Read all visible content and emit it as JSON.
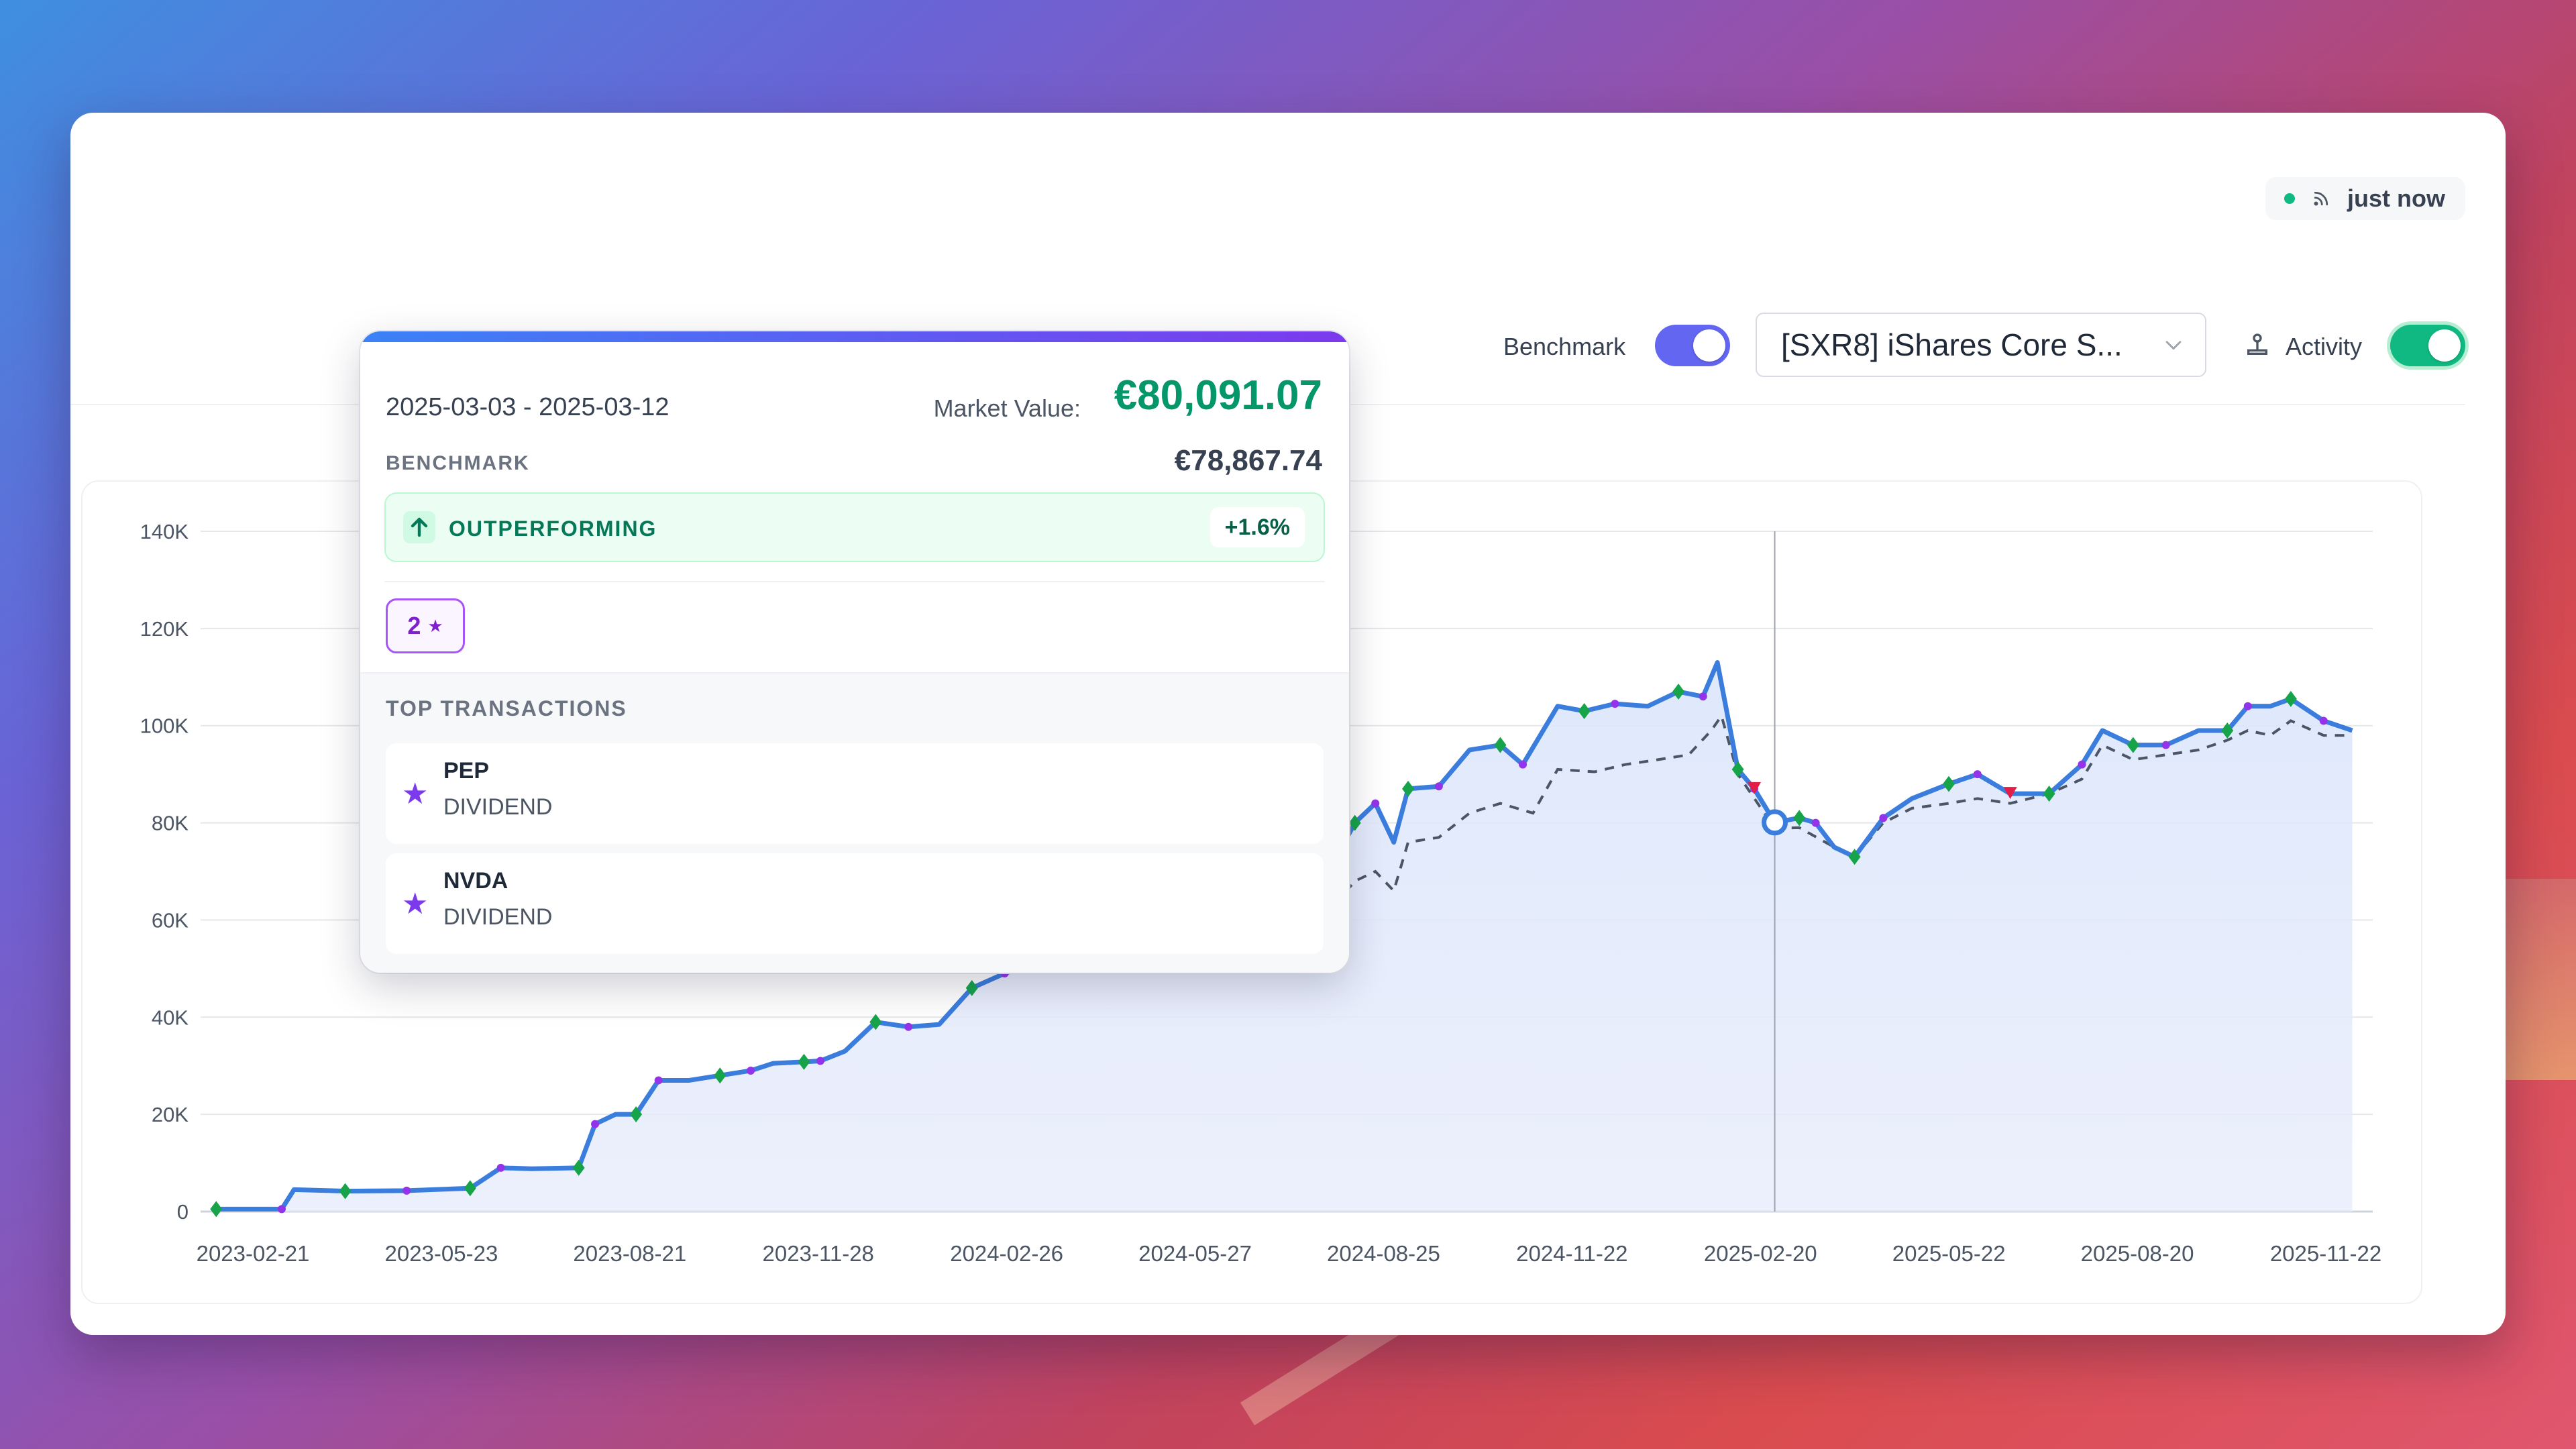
{
  "status": {
    "label": "just now",
    "icon": "rss-icon",
    "color": "#10b981"
  },
  "toolbar": {
    "benchmark_label": "Benchmark",
    "benchmark_enabled": true,
    "benchmark_select_value": "[SXR8] iShares Core S...",
    "activity_label": "Activity",
    "activity_enabled": true,
    "activity_icon": "joystick-icon"
  },
  "chart_data": {
    "type": "area",
    "y_ticks": [
      "0",
      "20K",
      "40K",
      "60K",
      "80K",
      "100K",
      "120K",
      "140K"
    ],
    "x_ticks": [
      "2023-02-21",
      "2023-05-23",
      "2023-08-21",
      "2023-11-28",
      "2024-02-26",
      "2024-05-27",
      "2024-08-25",
      "2024-11-22",
      "2025-02-20",
      "2025-05-22",
      "2025-08-20",
      "2025-11-22"
    ],
    "ylim": [
      0,
      140000
    ],
    "grid": true,
    "series": [
      {
        "color": "#3b7ddd",
        "style": "solid",
        "points": [
          [
            "2023-02-06",
            500
          ],
          [
            "2023-03-10",
            500
          ],
          [
            "2023-03-16",
            4500
          ],
          [
            "2023-04-10",
            4200
          ],
          [
            "2023-05-10",
            4300
          ],
          [
            "2023-05-23",
            4500
          ],
          [
            "2023-06-10",
            4800
          ],
          [
            "2023-06-25",
            9000
          ],
          [
            "2023-07-10",
            8800
          ],
          [
            "2023-08-02",
            9000
          ],
          [
            "2023-08-10",
            18000
          ],
          [
            "2023-08-20",
            20000
          ],
          [
            "2023-08-30",
            20000
          ],
          [
            "2023-09-10",
            27000
          ],
          [
            "2023-09-25",
            27000
          ],
          [
            "2023-10-10",
            28000
          ],
          [
            "2023-10-25",
            29000
          ],
          [
            "2023-11-05",
            30500
          ],
          [
            "2023-11-20",
            30800
          ],
          [
            "2023-11-28",
            31000
          ],
          [
            "2023-12-10",
            33000
          ],
          [
            "2023-12-25",
            39000
          ],
          [
            "2024-01-10",
            38000
          ],
          [
            "2024-01-25",
            38500
          ],
          [
            "2024-02-10",
            46000
          ],
          [
            "2024-02-26",
            49000
          ],
          [
            "2024-08-05",
            72000
          ],
          [
            "2024-08-15",
            80000
          ],
          [
            "2024-08-25",
            84000
          ],
          [
            "2024-09-03",
            76000
          ],
          [
            "2024-09-10",
            87000
          ],
          [
            "2024-09-25",
            87500
          ],
          [
            "2024-10-10",
            95000
          ],
          [
            "2024-10-25",
            96000
          ],
          [
            "2024-11-05",
            92000
          ],
          [
            "2024-11-22",
            104000
          ],
          [
            "2024-12-05",
            103000
          ],
          [
            "2024-12-20",
            104500
          ],
          [
            "2025-01-05",
            104000
          ],
          [
            "2025-01-20",
            107000
          ],
          [
            "2025-02-01",
            106000
          ],
          [
            "2025-02-08",
            113000
          ],
          [
            "2025-02-18",
            91000
          ],
          [
            "2025-02-26",
            87000
          ],
          [
            "2025-03-08",
            80091
          ],
          [
            "2025-03-20",
            81000
          ],
          [
            "2025-03-28",
            80000
          ],
          [
            "2025-04-06",
            75000
          ],
          [
            "2025-04-16",
            73000
          ],
          [
            "2025-04-30",
            81000
          ],
          [
            "2025-05-14",
            85000
          ],
          [
            "2025-06-01",
            88000
          ],
          [
            "2025-06-15",
            90000
          ],
          [
            "2025-07-01",
            86000
          ],
          [
            "2025-07-20",
            86000
          ],
          [
            "2025-08-05",
            92000
          ],
          [
            "2025-08-15",
            99000
          ],
          [
            "2025-08-30",
            96000
          ],
          [
            "2025-09-15",
            96000
          ],
          [
            "2025-10-01",
            99000
          ],
          [
            "2025-10-15",
            99000
          ],
          [
            "2025-10-25",
            104000
          ],
          [
            "2025-11-05",
            104000
          ],
          [
            "2025-11-15",
            105500
          ],
          [
            "2025-12-01",
            101000
          ],
          [
            "2025-12-15",
            99000
          ]
        ]
      },
      {
        "color": "#4b5563",
        "style": "dashed",
        "points": [
          [
            "2024-08-05",
            63000
          ],
          [
            "2024-08-15",
            68000
          ],
          [
            "2024-08-25",
            70000
          ],
          [
            "2024-09-03",
            66000
          ],
          [
            "2024-09-10",
            76000
          ],
          [
            "2024-09-25",
            77000
          ],
          [
            "2024-10-10",
            82000
          ],
          [
            "2024-10-25",
            84000
          ],
          [
            "2024-11-10",
            82000
          ],
          [
            "2024-11-22",
            91000
          ],
          [
            "2024-12-10",
            90500
          ],
          [
            "2024-12-25",
            92000
          ],
          [
            "2025-01-10",
            93000
          ],
          [
            "2025-01-25",
            94000
          ],
          [
            "2025-02-05",
            99000
          ],
          [
            "2025-02-10",
            102000
          ],
          [
            "2025-02-18",
            90000
          ],
          [
            "2025-03-08",
            78868
          ],
          [
            "2025-03-20",
            79000
          ],
          [
            "2025-04-06",
            75000
          ],
          [
            "2025-04-16",
            73000
          ],
          [
            "2025-04-30",
            80000
          ],
          [
            "2025-05-14",
            83000
          ],
          [
            "2025-06-01",
            84000
          ],
          [
            "2025-06-15",
            85000
          ],
          [
            "2025-07-01",
            84000
          ],
          [
            "2025-07-20",
            86000
          ],
          [
            "2025-08-05",
            89000
          ],
          [
            "2025-08-15",
            96000
          ],
          [
            "2025-08-30",
            93000
          ],
          [
            "2025-09-15",
            94000
          ],
          [
            "2025-10-01",
            95000
          ],
          [
            "2025-10-15",
            97000
          ],
          [
            "2025-10-25",
            99000
          ],
          [
            "2025-11-05",
            98000
          ],
          [
            "2025-11-15",
            101000
          ],
          [
            "2025-12-01",
            98000
          ],
          [
            "2025-12-15",
            98000
          ]
        ]
      }
    ],
    "markers": {
      "buy_color": "#16a34a",
      "sell_color": "#e11d48",
      "dividend_color": "#9333ea",
      "crosshair_x": "2025-03-08"
    }
  },
  "tooltip": {
    "range": "2025-03-03 - 2025-03-12",
    "market_value_label": "Market Value:",
    "market_value": "€80,091.07",
    "benchmark_label": "BENCHMARK",
    "benchmark_value": "€78,867.74",
    "performance_label": "OUTPERFORMING",
    "performance_value": "+1.6%",
    "badge_count": "2",
    "badge_icon": "★",
    "top_label": "TOP TRANSACTIONS",
    "transactions": [
      {
        "symbol": "PEP",
        "type": "DIVIDEND"
      },
      {
        "symbol": "NVDA",
        "type": "DIVIDEND"
      }
    ]
  }
}
